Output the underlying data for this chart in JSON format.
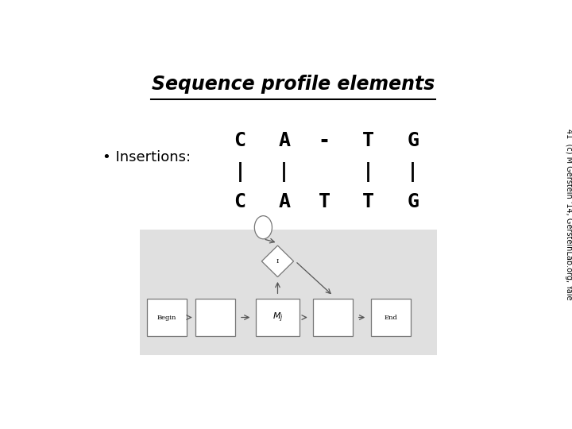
{
  "title": "Sequence profile elements",
  "bullet": "• Insertions:",
  "seq_top": [
    "C",
    "A",
    "-",
    "T",
    "G"
  ],
  "seq_bot": [
    "C",
    "A",
    "T",
    "T",
    "G"
  ],
  "arrows_col": [
    0,
    1,
    3,
    4
  ],
  "diagram_bg": "#e0e0e0",
  "box_color": "#ffffff",
  "box_edge": "#777777",
  "footer_text": "41  (c) M Gerstein '14, GersteinLab.org, Yale",
  "title_fontsize": 17,
  "bullet_fontsize": 13,
  "seq_fontsize": 18,
  "footer_fontsize": 7
}
